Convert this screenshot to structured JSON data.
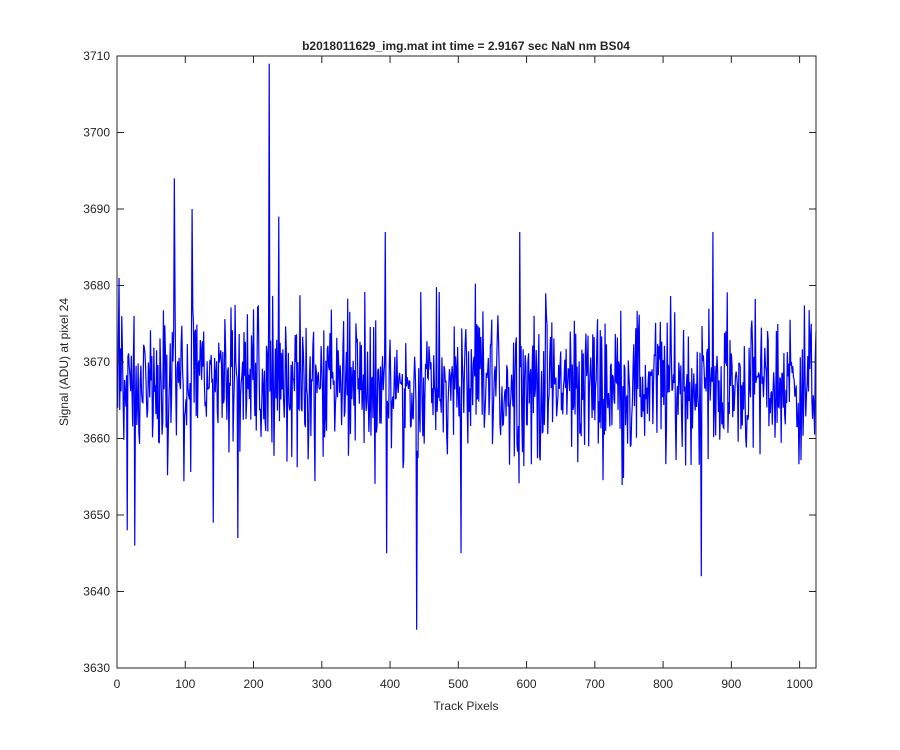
{
  "chart_data": {
    "type": "line",
    "title": "b2018011629_img.mat int time = 2.9167 sec  NaN nm BS04",
    "xlabel": "Track Pixels",
    "ylabel": "Signal (ADU) at pixel 24",
    "xlim": [
      0,
      1024
    ],
    "ylim": [
      3630,
      3710
    ],
    "x_ticks": [
      0,
      100,
      200,
      300,
      400,
      500,
      600,
      700,
      800,
      900,
      1000
    ],
    "y_ticks": [
      3630,
      3640,
      3650,
      3660,
      3670,
      3680,
      3690,
      3700,
      3710
    ],
    "grid": false,
    "legend": "none",
    "series": [
      {
        "color": "#0000ff",
        "n_points": 1024,
        "x_start": 1,
        "mean": 3667,
        "noise_amplitude": 9,
        "seed": 29,
        "notable_points": [
          {
            "x": 1,
            "y": 3664
          },
          {
            "x": 3,
            "y": 3681
          },
          {
            "x": 7,
            "y": 3676
          },
          {
            "x": 15,
            "y": 3648
          },
          {
            "x": 26,
            "y": 3646
          },
          {
            "x": 84,
            "y": 3694
          },
          {
            "x": 110,
            "y": 3690
          },
          {
            "x": 141,
            "y": 3649
          },
          {
            "x": 177,
            "y": 3647
          },
          {
            "x": 223,
            "y": 3709
          },
          {
            "x": 237,
            "y": 3689
          },
          {
            "x": 395,
            "y": 3645
          },
          {
            "x": 393,
            "y": 3687
          },
          {
            "x": 439,
            "y": 3635
          },
          {
            "x": 504,
            "y": 3645
          },
          {
            "x": 590,
            "y": 3687
          },
          {
            "x": 856,
            "y": 3642
          },
          {
            "x": 873,
            "y": 3687
          },
          {
            "x": 1024,
            "y": 3674
          }
        ]
      }
    ]
  }
}
